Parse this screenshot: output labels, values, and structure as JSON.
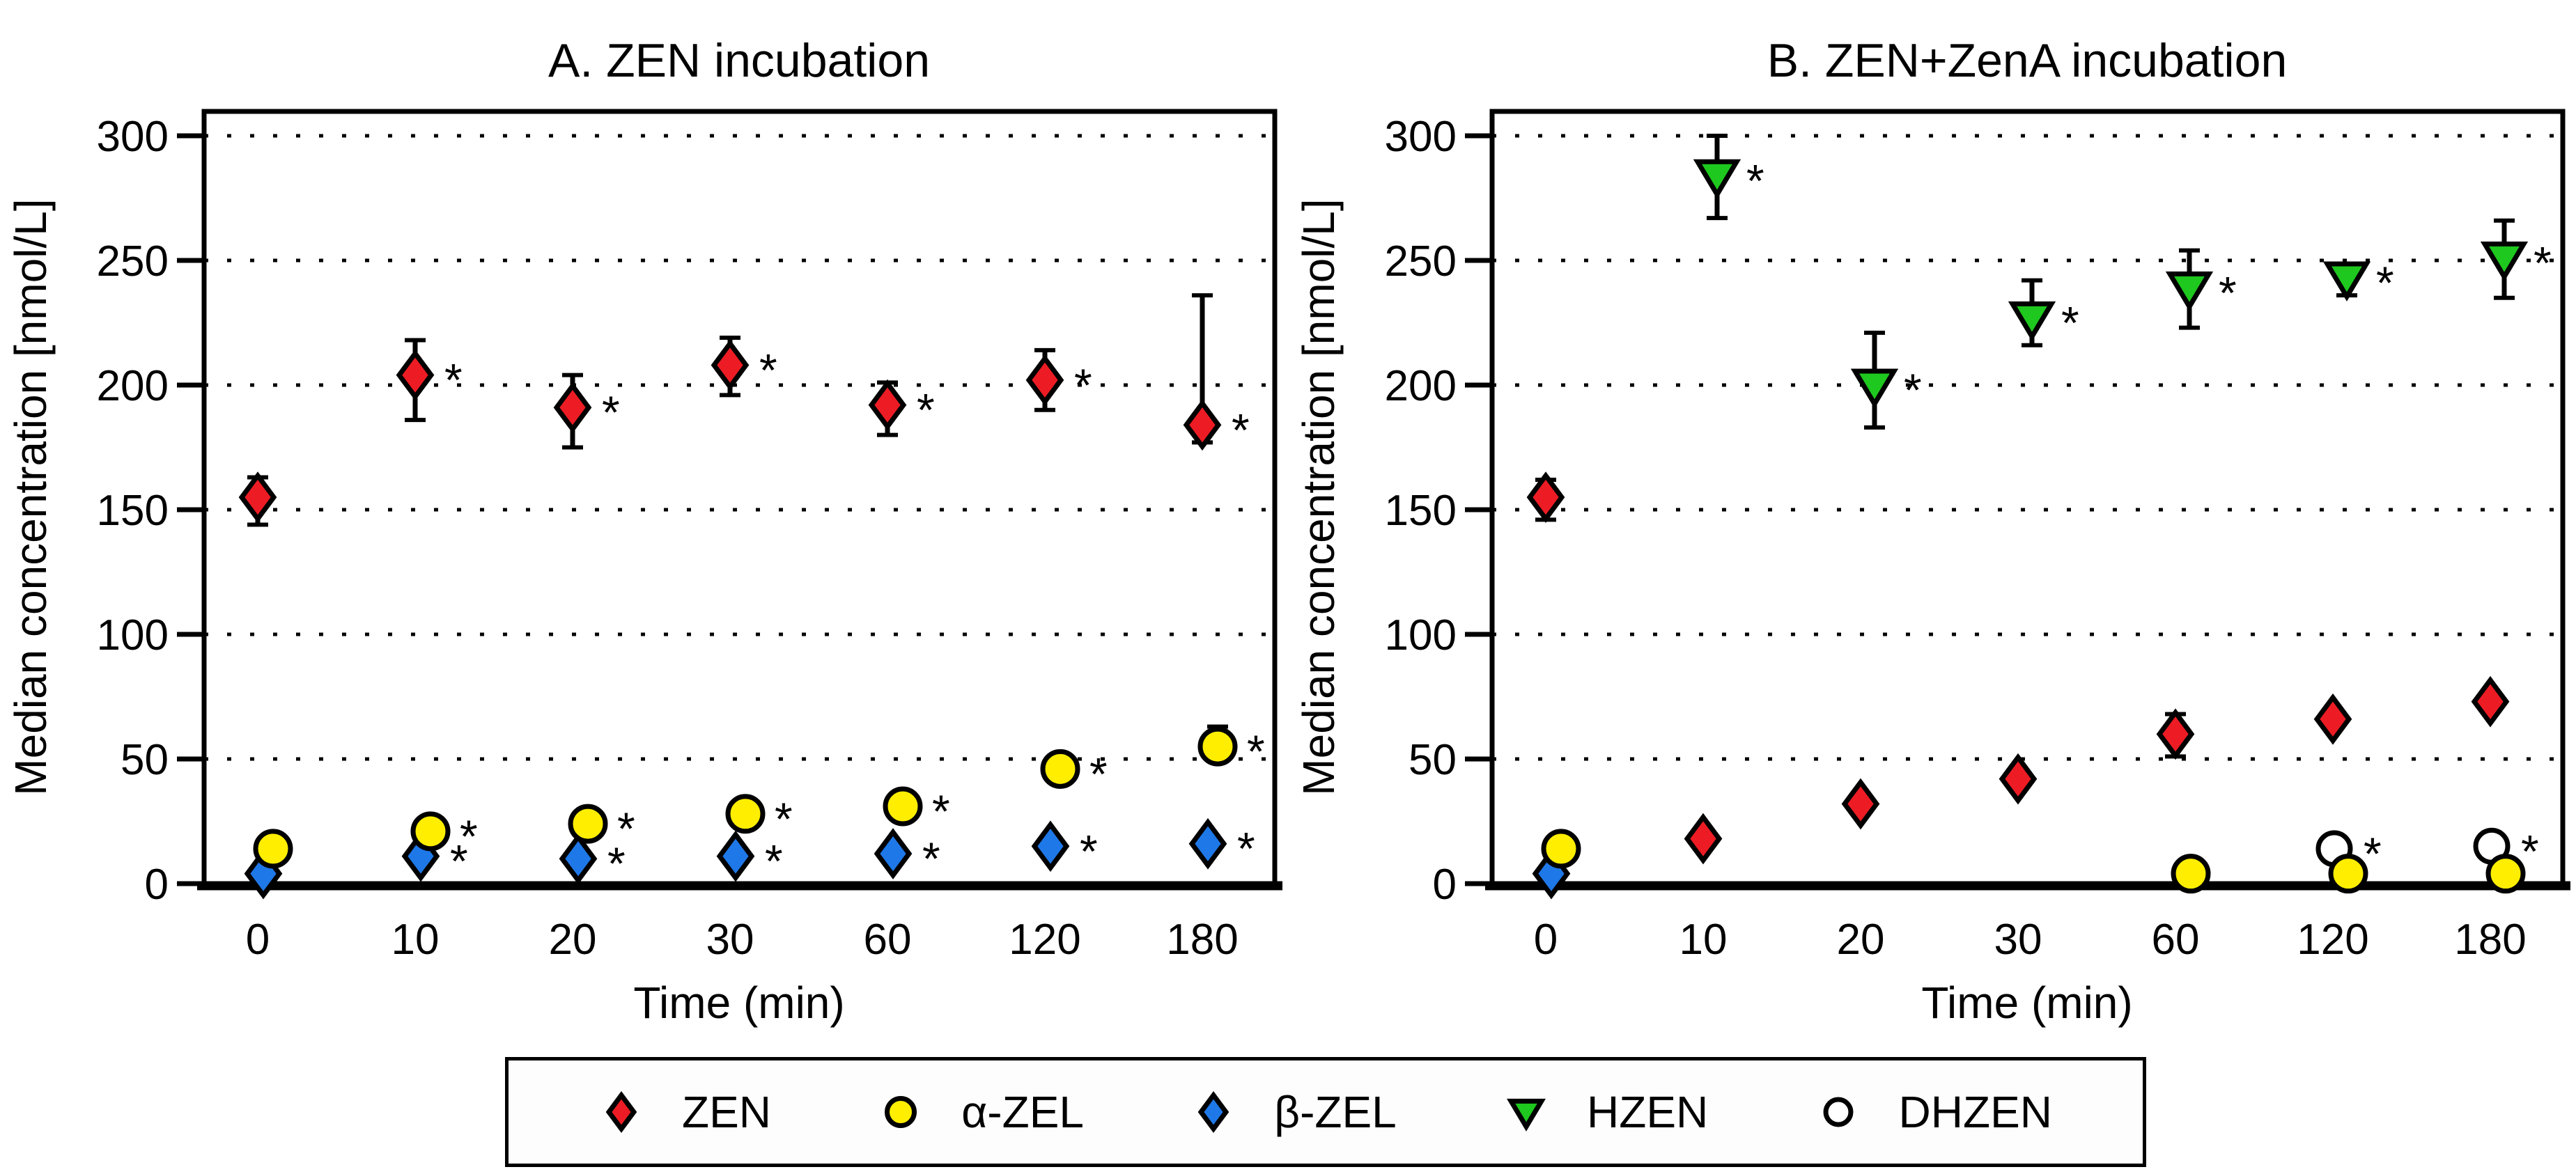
{
  "figure": {
    "background": "#ffffff",
    "legend": {
      "entries": [
        {
          "label": "ZEN",
          "marker": "diamond",
          "fill": "#ED1C24"
        },
        {
          "label": "α-ZEL",
          "marker": "circle",
          "fill": "#FFEE00"
        },
        {
          "label": "β-ZEL",
          "marker": "diamond",
          "fill": "#1E78E8"
        },
        {
          "label": "HZEN",
          "marker": "triangle-down",
          "fill": "#1EC81E"
        },
        {
          "label": "DHZEN",
          "marker": "circle-open",
          "fill": "#FFFFFF"
        }
      ]
    }
  },
  "chart_data": [
    {
      "type": "scatter",
      "title": "A. ZEN incubation",
      "xlabel": "Time (min)",
      "ylabel": "Median concentration [nmol/L]",
      "categories": [
        "0",
        "10",
        "20",
        "30",
        "60",
        "120",
        "180"
      ],
      "ylim": [
        0,
        300
      ],
      "yticks": [
        0,
        50,
        100,
        150,
        200,
        250,
        300
      ],
      "grid": "horizontal-dotted",
      "legend_position": "bottom-shared",
      "series": [
        {
          "name": "ZEN",
          "marker": "diamond",
          "fill": "#ED1C24",
          "dx": 0,
          "z": 1,
          "points": [
            {
              "t": "0",
              "y": 155,
              "lo": 144,
              "hi": 163,
              "sig": false
            },
            {
              "t": "10",
              "y": 204,
              "lo": 186,
              "hi": 218,
              "sig": true
            },
            {
              "t": "20",
              "y": 191,
              "lo": 175,
              "hi": 204,
              "sig": true
            },
            {
              "t": "30",
              "y": 208,
              "lo": 196,
              "hi": 219,
              "sig": true
            },
            {
              "t": "60",
              "y": 192,
              "lo": 180,
              "hi": 201,
              "sig": true
            },
            {
              "t": "120",
              "y": 202,
              "lo": 190,
              "hi": 214,
              "sig": true
            },
            {
              "t": "180",
              "y": 184,
              "lo": 177,
              "hi": 236,
              "sig": true
            }
          ]
        },
        {
          "name": "α-ZEL",
          "marker": "circle",
          "fill": "#FFEE00",
          "dx": 22,
          "z": 5,
          "points": [
            {
              "t": "0",
              "y": 14,
              "sig": false
            },
            {
              "t": "10",
              "y": 21,
              "sig": true
            },
            {
              "t": "20",
              "y": 24,
              "sig": true
            },
            {
              "t": "30",
              "y": 28,
              "sig": true
            },
            {
              "t": "60",
              "y": 31,
              "sig": true
            },
            {
              "t": "120",
              "y": 46,
              "sig": true
            },
            {
              "t": "180",
              "y": 55,
              "lo": 50,
              "hi": 63,
              "sig": true
            }
          ]
        },
        {
          "name": "β-ZEL",
          "marker": "diamond",
          "fill": "#1E78E8",
          "dx": 8,
          "z": 3,
          "points": [
            {
              "t": "0",
              "y": 4,
              "sig": false
            },
            {
              "t": "10",
              "y": 11,
              "sig": true
            },
            {
              "t": "20",
              "y": 10,
              "sig": true
            },
            {
              "t": "30",
              "y": 11,
              "sig": true
            },
            {
              "t": "60",
              "y": 12,
              "sig": true
            },
            {
              "t": "120",
              "y": 15,
              "sig": true
            },
            {
              "t": "180",
              "y": 16,
              "sig": true
            }
          ]
        }
      ]
    },
    {
      "type": "scatter",
      "title": "B. ZEN+ZenA incubation",
      "xlabel": "Time (min)",
      "ylabel": "Median concentration [nmol/L]",
      "categories": [
        "0",
        "10",
        "20",
        "30",
        "60",
        "120",
        "180"
      ],
      "ylim": [
        0,
        300
      ],
      "yticks": [
        0,
        50,
        100,
        150,
        200,
        250,
        300
      ],
      "grid": "horizontal-dotted",
      "legend_position": "bottom-shared",
      "series": [
        {
          "name": "ZEN",
          "marker": "diamond",
          "fill": "#ED1C24",
          "dx": 0,
          "z": 1,
          "points": [
            {
              "t": "0",
              "y": 155,
              "lo": 146,
              "hi": 162,
              "sig": false
            },
            {
              "t": "10",
              "y": 18,
              "sig": false
            },
            {
              "t": "20",
              "y": 32,
              "sig": false
            },
            {
              "t": "30",
              "y": 42,
              "sig": false
            },
            {
              "t": "60",
              "y": 60,
              "lo": 51,
              "hi": 68,
              "sig": false
            },
            {
              "t": "120",
              "y": 66,
              "sig": false
            },
            {
              "t": "180",
              "y": 73,
              "sig": false
            }
          ]
        },
        {
          "name": "α-ZEL",
          "marker": "circle",
          "fill": "#FFEE00",
          "dx": 22,
          "z": 5,
          "points": [
            {
              "t": "0",
              "y": 14,
              "sig": false
            },
            {
              "t": "60",
              "y": 4,
              "sig": false
            },
            {
              "t": "120",
              "y": 4,
              "sig": false
            },
            {
              "t": "180",
              "y": 4,
              "sig": false
            }
          ]
        },
        {
          "name": "β-ZEL",
          "marker": "diamond",
          "fill": "#1E78E8",
          "dx": 8,
          "z": 3,
          "points": [
            {
              "t": "0",
              "y": 4,
              "sig": false
            }
          ]
        },
        {
          "name": "HZEN",
          "marker": "triangle-down",
          "fill": "#1EC81E",
          "dx": 20,
          "z": 2,
          "points": [
            {
              "t": "10",
              "y": 284,
              "lo": 267,
              "hi": 300,
              "sig": true
            },
            {
              "t": "20",
              "y": 200,
              "lo": 183,
              "hi": 221,
              "sig": true
            },
            {
              "t": "30",
              "y": 227,
              "lo": 216,
              "hi": 242,
              "sig": true
            },
            {
              "t": "60",
              "y": 239,
              "lo": 223,
              "hi": 254,
              "sig": true
            },
            {
              "t": "120",
              "y": 243,
              "lo": 236,
              "hi": 248,
              "sig": true
            },
            {
              "t": "180",
              "y": 251,
              "lo": 235,
              "hi": 266,
              "sig": true
            }
          ]
        },
        {
          "name": "DHZEN",
          "marker": "circle-open",
          "fill": "#FFFFFF",
          "dx": 2,
          "z": 4,
          "points": [
            {
              "t": "120",
              "y": 14,
              "sig": true
            },
            {
              "t": "180",
              "y": 15,
              "sig": true
            }
          ]
        }
      ]
    }
  ]
}
